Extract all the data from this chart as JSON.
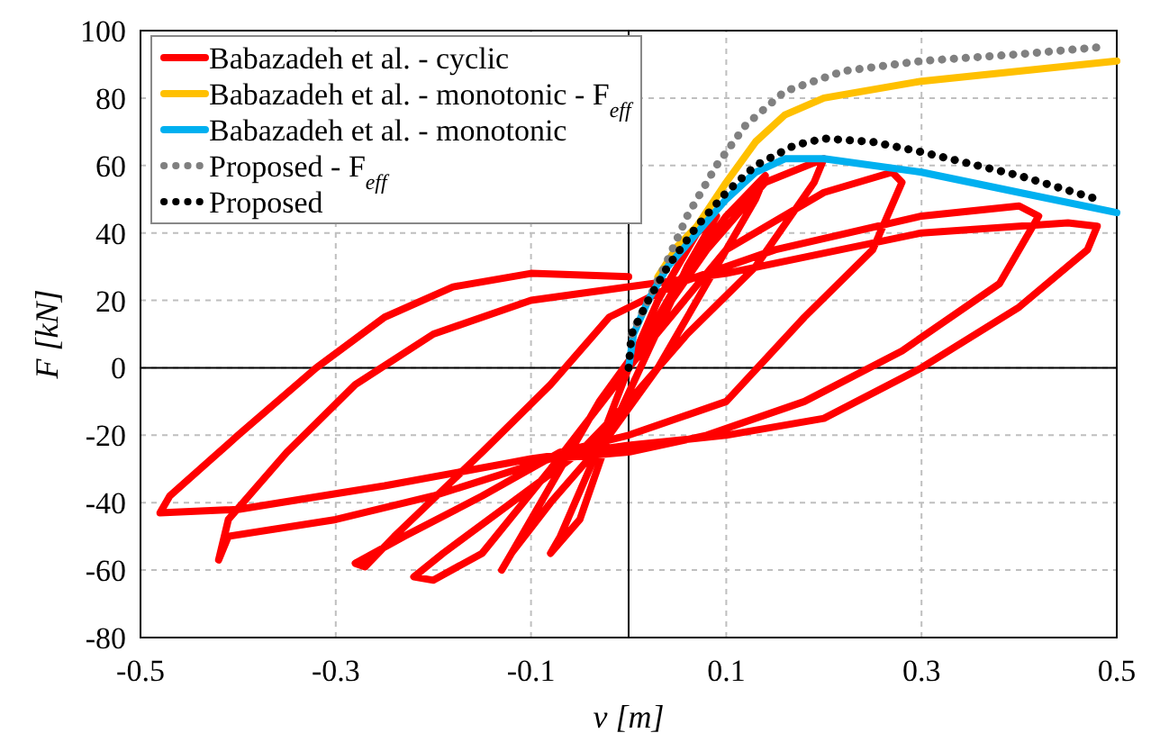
{
  "chart_data": {
    "type": "line",
    "xlabel": "v [m]",
    "ylabel": "F [kN]",
    "xlim": [
      -0.5,
      0.5
    ],
    "xticks": [
      -0.5,
      -0.3,
      -0.1,
      0.1,
      0.3,
      0.5
    ],
    "ylim": [
      -80,
      100
    ],
    "yticks": [
      -80,
      -60,
      -40,
      -20,
      0,
      20,
      40,
      60,
      80,
      100
    ],
    "grid": true,
    "legend": "top left",
    "series": [
      {
        "name": "Babazadeh et al. - cyclic",
        "color": "#ff0000",
        "line_style": "solid",
        "x": [
          0,
          0.03,
          0.07,
          0.09,
          0.06,
          0.02,
          -0.02,
          -0.05,
          -0.08,
          -0.07,
          -0.04,
          0,
          0.05,
          0.1,
          0.14,
          0.13,
          0.08,
          0.03,
          -0.02,
          -0.08,
          -0.12,
          -0.13,
          -0.12,
          -0.08,
          -0.03,
          0.02,
          0.08,
          0.14,
          0.2,
          0.19,
          0.13,
          0.06,
          0,
          -0.05,
          -0.12,
          -0.19,
          -0.22,
          -0.2,
          -0.15,
          -0.08,
          0,
          0.1,
          0.2,
          0.27,
          0.28,
          0.25,
          0.18,
          0.1,
          0,
          -0.07,
          -0.15,
          -0.23,
          -0.28,
          -0.27,
          -0.24,
          -0.15,
          -0.08,
          -0.02,
          0.05,
          0.15,
          0.3,
          0.4,
          0.42,
          0.38,
          0.28,
          0.18,
          0.08,
          0,
          -0.08,
          -0.2,
          -0.3,
          -0.41,
          -0.42,
          -0.41,
          -0.35,
          -0.28,
          -0.2,
          -0.1,
          0,
          0.1,
          0.3,
          0.45,
          0.48,
          0.47,
          0.4,
          0.3,
          0.2,
          0.1,
          0,
          -0.1,
          -0.25,
          -0.4,
          -0.48,
          -0.47,
          -0.4,
          -0.32,
          -0.25,
          -0.18,
          -0.1,
          0
        ],
        "values": [
          0,
          20,
          40,
          45,
          30,
          5,
          -20,
          -45,
          -55,
          -50,
          -30,
          0,
          25,
          45,
          57,
          50,
          25,
          0,
          -20,
          -40,
          -55,
          -60,
          -55,
          -35,
          -10,
          10,
          35,
          55,
          62,
          55,
          30,
          10,
          -10,
          -25,
          -40,
          -55,
          -62,
          -63,
          -55,
          -30,
          0,
          35,
          52,
          58,
          55,
          35,
          15,
          -10,
          -20,
          -25,
          -38,
          -50,
          -58,
          -59,
          -50,
          -25,
          -5,
          15,
          25,
          35,
          45,
          48,
          45,
          25,
          5,
          -10,
          -20,
          -25,
          -27,
          -38,
          -45,
          -50,
          -57,
          -45,
          -25,
          -5,
          10,
          20,
          24,
          28,
          40,
          43,
          42,
          35,
          18,
          0,
          -15,
          -20,
          -23,
          -27,
          -35,
          -42,
          -43,
          -38,
          -20,
          0,
          15,
          24,
          28,
          27
        ]
      },
      {
        "name": "Babazadeh et al. - monotonic - F$_{eff}$",
        "color": "#ffc000",
        "line_style": "solid",
        "x": [
          0.03,
          0.05,
          0.07,
          0.1,
          0.13,
          0.16,
          0.2,
          0.3,
          0.4,
          0.5
        ],
        "values": [
          27,
          36,
          42,
          55,
          67,
          75,
          80,
          85,
          88,
          91
        ]
      },
      {
        "name": "Babazadeh et al. - monotonic",
        "color": "#00b0f0",
        "line_style": "solid",
        "x": [
          0,
          0.005,
          0.02,
          0.04,
          0.07,
          0.1,
          0.13,
          0.16,
          0.2,
          0.3,
          0.4,
          0.5
        ],
        "values": [
          0,
          10,
          20,
          30,
          40,
          50,
          58,
          62,
          62,
          58,
          52,
          46
        ]
      },
      {
        "name": "Proposed - F$_{eff}$",
        "color": "#808080",
        "line_style": "dotted",
        "x": [
          0.003,
          0.02,
          0.04,
          0.06,
          0.09,
          0.12,
          0.16,
          0.22,
          0.3,
          0.4,
          0.48
        ],
        "values": [
          10,
          20,
          32,
          45,
          60,
          72,
          82,
          88,
          91,
          93,
          95
        ]
      },
      {
        "name": "Proposed",
        "color": "#000000",
        "line_style": "dotted",
        "x": [
          0,
          0.003,
          0.02,
          0.04,
          0.07,
          0.1,
          0.13,
          0.17,
          0.2,
          0.25,
          0.3,
          0.4,
          0.48
        ],
        "values": [
          0,
          10,
          20,
          30,
          42,
          52,
          60,
          66,
          68,
          67,
          64,
          57,
          50
        ]
      }
    ]
  }
}
